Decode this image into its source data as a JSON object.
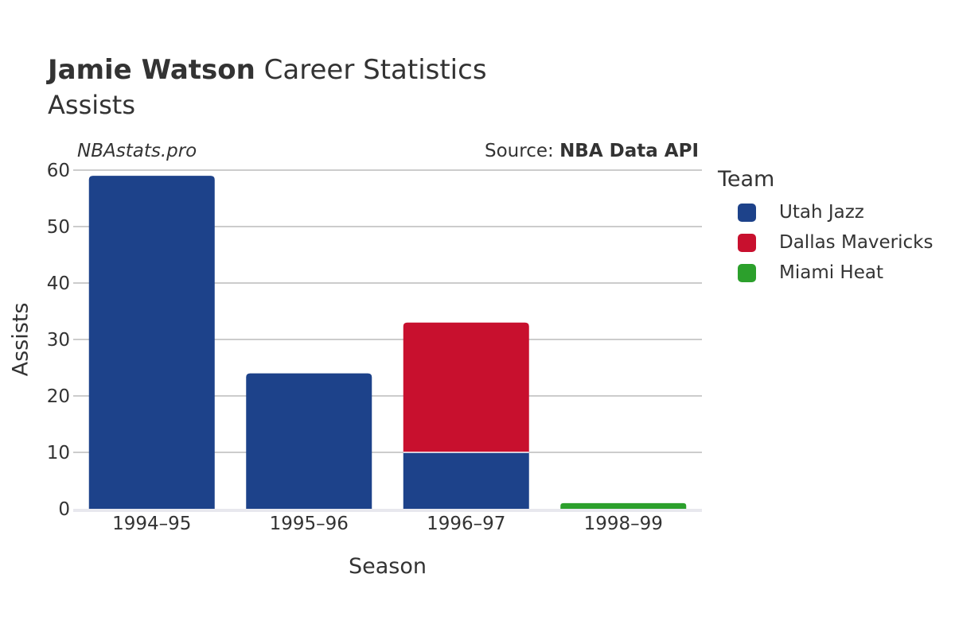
{
  "header": {
    "player": "Jamie Watson",
    "title_rest": " Career Statistics",
    "subtitle": "Assists",
    "watermark": "NBAstats.pro",
    "source_label": "Source: ",
    "source_name": "NBA Data API"
  },
  "legend": {
    "title": "Team",
    "items": [
      {
        "label": "Utah Jazz",
        "color": "#1d428a"
      },
      {
        "label": "Dallas Mavericks",
        "color": "#c8102e"
      },
      {
        "label": "Miami Heat",
        "color": "#2ca02c"
      }
    ]
  },
  "chart_data": {
    "type": "bar",
    "stacked": true,
    "title": "Jamie Watson Career Statistics",
    "subtitle": "Assists",
    "xlabel": "Season",
    "ylabel": "Assists",
    "ylim": [
      0,
      60
    ],
    "yticks": [
      0,
      10,
      20,
      30,
      40,
      50,
      60
    ],
    "categories": [
      "1994–95",
      "1995–96",
      "1996–97",
      "1998–99"
    ],
    "series": [
      {
        "name": "Utah Jazz",
        "color": "#1d428a",
        "values": [
          59,
          24,
          10,
          0
        ]
      },
      {
        "name": "Dallas Mavericks",
        "color": "#c8102e",
        "values": [
          0,
          0,
          23,
          0
        ]
      },
      {
        "name": "Miami Heat",
        "color": "#2ca02c",
        "values": [
          0,
          0,
          0,
          1
        ]
      }
    ]
  }
}
